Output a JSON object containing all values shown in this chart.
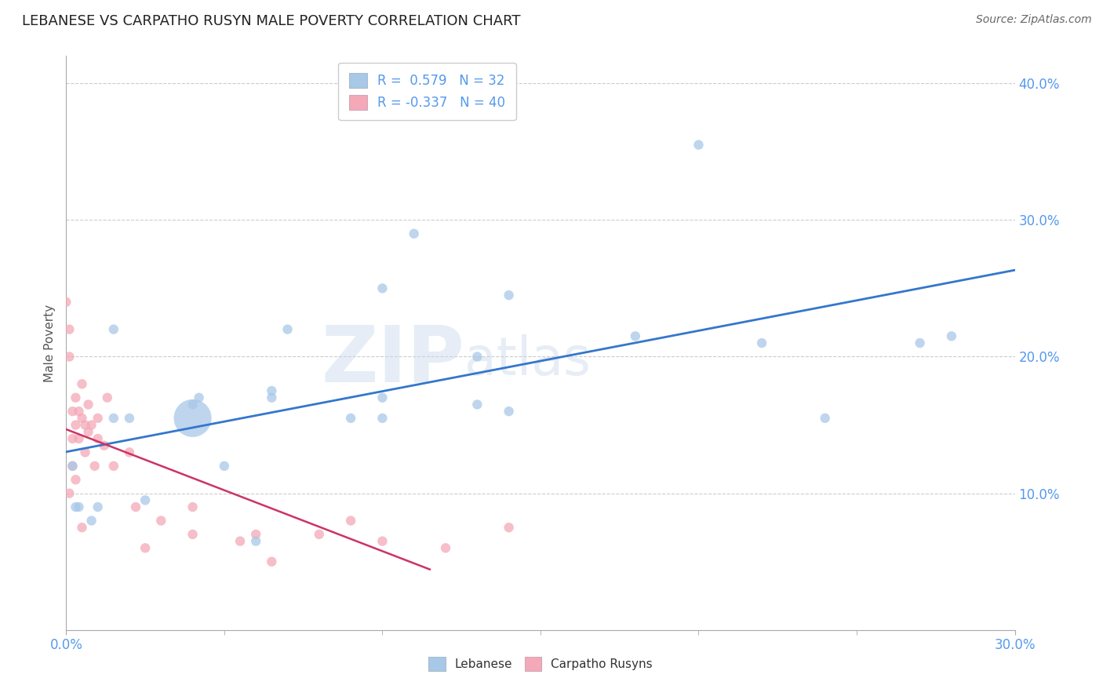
{
  "title": "LEBANESE VS CARPATHO RUSYN MALE POVERTY CORRELATION CHART",
  "source": "Source: ZipAtlas.com",
  "ylabel": "Male Poverty",
  "xlim": [
    0.0,
    0.3
  ],
  "ylim": [
    0.0,
    0.42
  ],
  "blue_color": "#A8C8E8",
  "pink_color": "#F4A8B8",
  "blue_line_color": "#3377CC",
  "pink_line_color": "#CC3366",
  "tick_color": "#5599EE",
  "legend_r_blue": "0.579",
  "legend_n_blue": "32",
  "legend_r_pink": "-0.337",
  "legend_n_pink": "40",
  "lebanese_x": [
    0.002,
    0.003,
    0.004,
    0.008,
    0.01,
    0.015,
    0.015,
    0.02,
    0.025,
    0.04,
    0.042,
    0.05,
    0.065,
    0.065,
    0.07,
    0.09,
    0.1,
    0.11,
    0.13,
    0.14,
    0.18,
    0.2,
    0.22,
    0.27,
    0.14,
    0.1,
    0.28,
    0.24,
    0.1,
    0.13,
    0.06,
    0.04
  ],
  "lebanese_y": [
    0.12,
    0.09,
    0.09,
    0.08,
    0.09,
    0.22,
    0.155,
    0.155,
    0.095,
    0.165,
    0.17,
    0.12,
    0.17,
    0.175,
    0.22,
    0.155,
    0.25,
    0.29,
    0.2,
    0.245,
    0.215,
    0.355,
    0.21,
    0.21,
    0.16,
    0.17,
    0.215,
    0.155,
    0.155,
    0.165,
    0.065,
    0.155
  ],
  "lebanese_size": [
    80,
    80,
    80,
    80,
    80,
    80,
    80,
    80,
    80,
    80,
    80,
    80,
    80,
    80,
    80,
    80,
    80,
    80,
    80,
    80,
    80,
    80,
    80,
    80,
    80,
    80,
    80,
    80,
    80,
    80,
    80,
    1200
  ],
  "carpatho_x": [
    0.0,
    0.001,
    0.001,
    0.002,
    0.002,
    0.003,
    0.003,
    0.004,
    0.004,
    0.005,
    0.005,
    0.006,
    0.006,
    0.007,
    0.007,
    0.008,
    0.009,
    0.01,
    0.01,
    0.012,
    0.013,
    0.015,
    0.02,
    0.022,
    0.025,
    0.03,
    0.04,
    0.04,
    0.055,
    0.06,
    0.065,
    0.08,
    0.09,
    0.1,
    0.12,
    0.14,
    0.001,
    0.002,
    0.003,
    0.005
  ],
  "carpatho_y": [
    0.24,
    0.22,
    0.2,
    0.16,
    0.14,
    0.17,
    0.15,
    0.16,
    0.14,
    0.18,
    0.155,
    0.15,
    0.13,
    0.165,
    0.145,
    0.15,
    0.12,
    0.155,
    0.14,
    0.135,
    0.17,
    0.12,
    0.13,
    0.09,
    0.06,
    0.08,
    0.09,
    0.07,
    0.065,
    0.07,
    0.05,
    0.07,
    0.08,
    0.065,
    0.06,
    0.075,
    0.1,
    0.12,
    0.11,
    0.075
  ],
  "carpatho_size": [
    80,
    80,
    80,
    80,
    80,
    80,
    80,
    80,
    80,
    80,
    80,
    80,
    80,
    80,
    80,
    80,
    80,
    80,
    80,
    80,
    80,
    80,
    80,
    80,
    80,
    80,
    80,
    80,
    80,
    80,
    80,
    80,
    80,
    80,
    80,
    80,
    80,
    80,
    80,
    80
  ]
}
